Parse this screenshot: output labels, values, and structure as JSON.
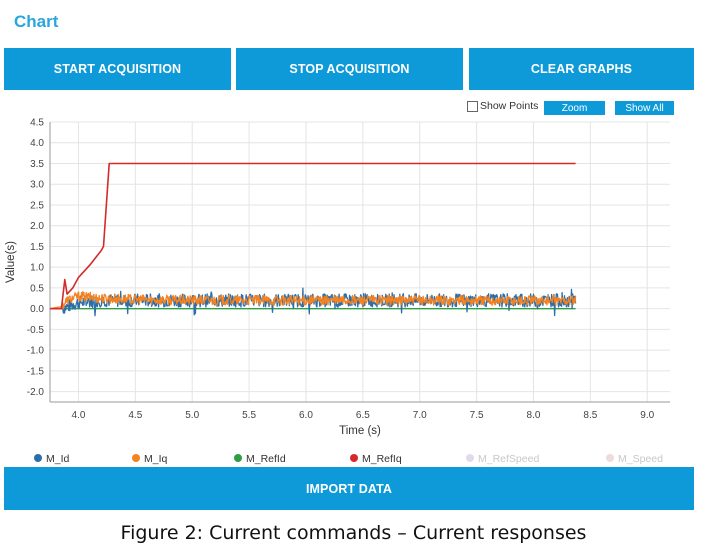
{
  "panel": {
    "title": "Chart"
  },
  "toolbar": {
    "start_label": "START ACQUISITION",
    "stop_label": "STOP ACQUISITION",
    "clear_label": "CLEAR GRAPHS"
  },
  "controls": {
    "show_points_label": "Show Points",
    "show_points_checked": false,
    "zoom_label": "Zoom",
    "show_all_label": "Show All"
  },
  "import_label": "IMPORT DATA",
  "caption": "Figure 2: Current commands – Current responses",
  "colors": {
    "accent": "#0e9ad8",
    "title": "#2aa6de"
  },
  "chart_data": {
    "type": "line",
    "xlabel": "Time (s)",
    "ylabel": "Value(s)",
    "xlim": [
      3.75,
      9.2
    ],
    "ylim": [
      -2.25,
      4.5
    ],
    "xticks": [
      "4.0",
      "4.5",
      "5.0",
      "5.5",
      "6.0",
      "6.5",
      "7.0",
      "7.5",
      "8.0",
      "8.5",
      "9.0"
    ],
    "yticks": [
      "4.5",
      "4.0",
      "3.5",
      "3.0",
      "2.5",
      "2.0",
      "1.5",
      "1.0",
      "0.5",
      "0.0",
      "-0.5",
      "-1.0",
      "-1.5",
      "-2.0"
    ],
    "grid": true,
    "legend_position": "bottom",
    "series": [
      {
        "name": "M_Id",
        "color": "#2c6fa8",
        "visible": true,
        "x": [
          3.75,
          3.85,
          3.9,
          4.0,
          4.2,
          4.5,
          5.0,
          5.5,
          6.0,
          6.5,
          7.0,
          7.5,
          8.0,
          8.37
        ],
        "y": [
          0.0,
          0.0,
          0.05,
          0.15,
          0.2,
          0.2,
          0.2,
          0.2,
          0.2,
          0.2,
          0.2,
          0.2,
          0.2,
          0.2
        ]
      },
      {
        "name": "M_Iq",
        "color": "#f58220",
        "visible": true,
        "x": [
          3.75,
          3.85,
          3.9,
          4.0,
          4.2,
          4.5,
          5.0,
          5.5,
          6.0,
          6.5,
          7.0,
          7.5,
          8.0,
          8.37
        ],
        "y": [
          0.0,
          0.05,
          0.2,
          0.3,
          0.25,
          0.22,
          0.2,
          0.2,
          0.2,
          0.2,
          0.2,
          0.2,
          0.2,
          0.2
        ]
      },
      {
        "name": "M_RefId",
        "color": "#2e9e44",
        "visible": true,
        "x": [
          3.75,
          8.37
        ],
        "y": [
          0.0,
          0.0
        ]
      },
      {
        "name": "M_RefIq",
        "color": "#d42a2a",
        "visible": true,
        "x": [
          3.75,
          3.85,
          3.88,
          3.9,
          3.95,
          4.0,
          4.1,
          4.2,
          4.22,
          4.27,
          4.3,
          8.37
        ],
        "y": [
          0.0,
          0.0,
          0.7,
          0.35,
          0.5,
          0.75,
          1.05,
          1.4,
          1.5,
          3.5,
          3.5,
          3.5
        ]
      },
      {
        "name": "M_RefSpeed",
        "color": "#e3d9ef",
        "visible": false,
        "x": [],
        "y": []
      },
      {
        "name": "M_Speed",
        "color": "#ecdcdc",
        "visible": false,
        "x": [],
        "y": []
      }
    ]
  }
}
